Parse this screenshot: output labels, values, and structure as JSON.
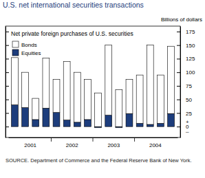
{
  "chart_data": {
    "type": "bar",
    "stacked": true,
    "title": "U.S. net international securities transactions",
    "subtitle": "Net private foreign purchases of U.S. securities",
    "y_label": "Billions of dollars",
    "source": "SOURCE. Department of Commerce and the Federal Reserve Bank of New York.",
    "categories": [
      null,
      "2001",
      null,
      null,
      null,
      "2002",
      null,
      null,
      null,
      "2003",
      null,
      null,
      null,
      "2004",
      null,
      null
    ],
    "series": [
      {
        "name": "Equities",
        "color": "#1d3d7c",
        "values": [
          40,
          35,
          13,
          34,
          26,
          12,
          8,
          13,
          -2,
          21,
          -2,
          24,
          6,
          4,
          6,
          24
        ]
      },
      {
        "name": "Bonds",
        "color": "#ffffff",
        "values": [
          87,
          65,
          39,
          92,
          61,
          108,
          92,
          74,
          62,
          129,
          68,
          63,
          89,
          146,
          89,
          124
        ]
      }
    ],
    "ylim": [
      -20,
      185
    ],
    "yticks": [
      {
        "value": -9,
        "label": "–"
      },
      0,
      {
        "value": 9,
        "label": "+"
      },
      25,
      50,
      75,
      100,
      125,
      150,
      175
    ],
    "legend": "upper left"
  }
}
